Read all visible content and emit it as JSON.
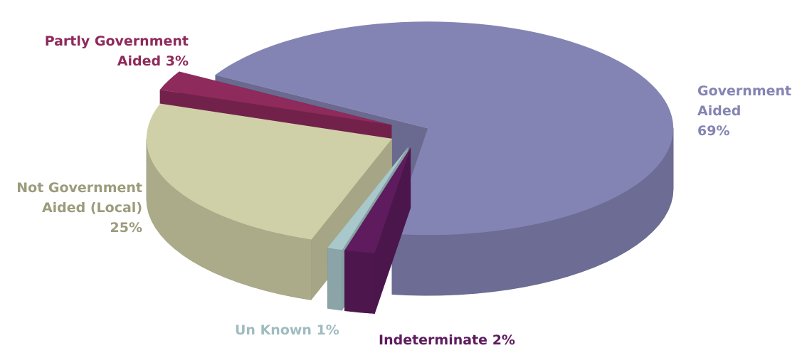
{
  "chart_data": {
    "type": "pie",
    "categories": [
      "Government Aided",
      "Indeterminate",
      "Un Known",
      "Not Government Aided (Local)",
      "Partly Government Aided"
    ],
    "values": [
      69,
      2,
      1,
      25,
      3
    ],
    "value_labels": [
      "69%",
      "2%",
      "1%",
      "25%",
      "3%"
    ],
    "colors": [
      "#8484b4",
      "#5e1c5e",
      "#a8c8cc",
      "#d0d0a8",
      "#8e2a5c"
    ]
  }
}
